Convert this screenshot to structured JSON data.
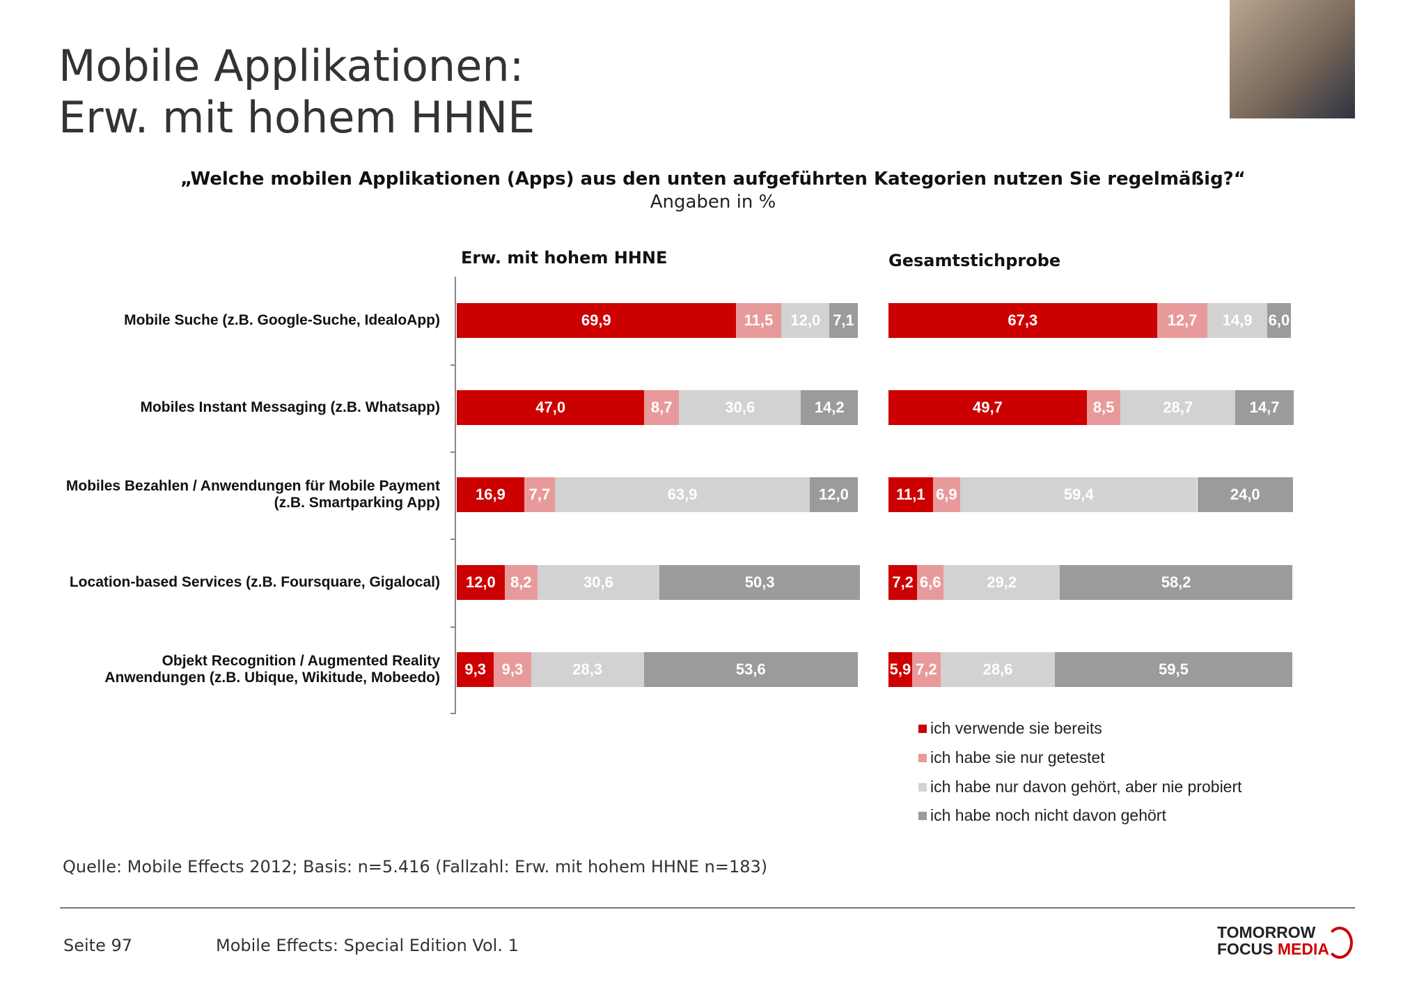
{
  "slide": {
    "title": "Mobile Applikationen:\nErw. mit hohem HHNE",
    "question": "„Welche mobilen Applikationen (Apps) aus den unten aufgeführten Kategorien nutzen Sie regelmäßig?“",
    "unit_note": "Angaben in %",
    "source": "Quelle: Mobile Effects 2012; Basis: n=5.416 (Fallzahl: Erw. mit hohem HHNE n=183)",
    "page": "Seite 97",
    "publication": "Mobile Effects: Special Edition Vol. 1",
    "logo": {
      "line1": "TOMORROW",
      "line2a": "FOCUS",
      "line2b": "MEDIA"
    }
  },
  "chart_data": [
    {
      "type": "stacked_bar_horizontal",
      "title": "Erw. mit hohem HHNE",
      "xlim": [
        0,
        100
      ],
      "categories": [
        "Mobile Suche (z.B. Google-Suche, IdealoApp)",
        "Mobiles Instant Messaging (z.B. Whatsapp)",
        "Mobiles Bezahlen / Anwendungen für Mobile Payment\n(z.B. Smartparking App)",
        "Location-based Services (z.B. Foursquare, Gigalocal)",
        "Objekt Recognition / Augmented Reality\nAnwendungen (z.B. Ubique, Wikitude, Mobeedo)"
      ],
      "series": [
        {
          "name": "ich verwende sie bereits",
          "color": "#cc0000",
          "values": [
            69.9,
            47.0,
            16.9,
            12.0,
            9.3
          ],
          "value_labels": [
            "69,9",
            "47,0",
            "16,9",
            "12,0",
            "9,3"
          ]
        },
        {
          "name": "ich habe sie nur getestet",
          "color": "#e89a9a",
          "values": [
            11.5,
            8.7,
            7.7,
            8.2,
            9.3
          ],
          "value_labels": [
            "11,5",
            "8,7",
            "7,7",
            "8,2",
            "9,3"
          ]
        },
        {
          "name": "ich habe nur davon gehört, aber nie probiert",
          "color": "#d2d2d2",
          "values": [
            12.0,
            30.6,
            63.9,
            30.6,
            28.3
          ],
          "value_labels": [
            "12,0",
            "30,6",
            "63,9",
            "30,6",
            "28,3"
          ]
        },
        {
          "name": "ich habe noch nicht davon gehört",
          "color": "#9b9b9b",
          "values": [
            7.1,
            14.2,
            12.0,
            50.3,
            53.6
          ],
          "value_labels": [
            "7,1",
            "14,2",
            "12,0",
            "50,3",
            "53,6"
          ]
        }
      ]
    },
    {
      "type": "stacked_bar_horizontal",
      "title": "Gesamtstichprobe",
      "xlim": [
        0,
        100
      ],
      "series": [
        {
          "color": "#cc0000",
          "values": [
            67.3,
            49.7,
            11.1,
            7.2,
            5.9
          ],
          "value_labels": [
            "67,3",
            "49,7",
            "11,1",
            "7,2",
            "5,9"
          ]
        },
        {
          "color": "#e89a9a",
          "values": [
            12.7,
            8.5,
            6.9,
            6.6,
            7.2
          ],
          "value_labels": [
            "12,7",
            "8,5",
            "6,9",
            "6,6",
            "7,2"
          ]
        },
        {
          "color": "#d2d2d2",
          "values": [
            14.9,
            28.7,
            59.4,
            29.2,
            28.6
          ],
          "value_labels": [
            "14,9",
            "28,7",
            "59,4",
            "29,2",
            "28,6"
          ]
        },
        {
          "color": "#9b9b9b",
          "values": [
            6.0,
            14.7,
            24.0,
            58.2,
            59.5
          ],
          "value_labels": [
            "6,0",
            "14,7",
            "24,0",
            "58,2",
            "59,5"
          ]
        }
      ]
    }
  ]
}
